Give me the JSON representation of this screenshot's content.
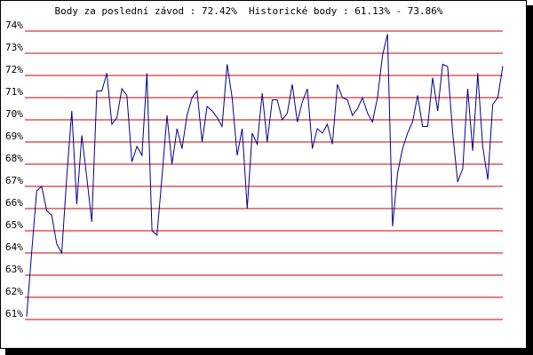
{
  "chart_data": {
    "type": "line",
    "title": "Body za poslední závod : 72.42%  Historické body : 61.13% - 73.86%",
    "categories": [
      null,
      null,
      null,
      null,
      null,
      null,
      null,
      null,
      null,
      null,
      null,
      null,
      null,
      null,
      null,
      null,
      null,
      null,
      null,
      null,
      null,
      null,
      null,
      null,
      null,
      null,
      null,
      null,
      null,
      null,
      null,
      null,
      null,
      null,
      null,
      null,
      null,
      null,
      null,
      null,
      null,
      null,
      null,
      null,
      null,
      null,
      null,
      null,
      null,
      null,
      null,
      null,
      null,
      null,
      null,
      null,
      null,
      null,
      null,
      null,
      null,
      null,
      null,
      null,
      null,
      null,
      null,
      null,
      null,
      null,
      null,
      null,
      null,
      null,
      null,
      null,
      null,
      null,
      null,
      null,
      null,
      null,
      null,
      null,
      null,
      null,
      null,
      null,
      null,
      null,
      null,
      null,
      null,
      null,
      null,
      null
    ],
    "values": [
      61.13,
      64,
      66.8,
      67,
      65.9,
      65.7,
      64.4,
      64,
      67.4,
      70.4,
      66.2,
      69.3,
      67.4,
      65.4,
      71.3,
      71.3,
      72.1,
      69.8,
      70.1,
      71.4,
      71.1,
      68.1,
      68.8,
      68.4,
      72.1,
      65,
      64.8,
      67.4,
      70.2,
      68,
      69.6,
      68.7,
      70.2,
      71,
      71.3,
      69,
      70.6,
      70.4,
      70.1,
      69.7,
      72.5,
      71,
      68.4,
      69.6,
      66,
      69.4,
      68.9,
      71.2,
      69,
      70.9,
      70.9,
      70,
      70.3,
      71.6,
      69.9,
      70.8,
      71.4,
      68.7,
      69.6,
      69.4,
      69.8,
      68.9,
      71.6,
      71,
      70.9,
      70.2,
      70.5,
      71,
      70.3,
      69.9,
      71,
      72.9,
      73.86,
      65.2,
      67.6,
      68.7,
      69.4,
      69.9,
      71.1,
      69.7,
      69.7,
      71.9,
      70.4,
      72.5,
      72.4,
      69.4,
      67.2,
      67.8,
      71.4,
      68.6,
      72.1,
      68.8,
      67.3,
      70.7,
      71,
      72.42
    ],
    "color": "#00008b",
    "grid_color": "#cc0000",
    "ylim": [
      61,
      74
    ],
    "yticks": [
      {
        "value": 61,
        "label": "61%"
      },
      {
        "value": 62,
        "label": "62%"
      },
      {
        "value": 63,
        "label": "63%"
      },
      {
        "value": 64,
        "label": "64%"
      },
      {
        "value": 65,
        "label": "65%"
      },
      {
        "value": 66,
        "label": "66%"
      },
      {
        "value": 67,
        "label": "67%"
      },
      {
        "value": 68,
        "label": "68%"
      },
      {
        "value": 69,
        "label": "69%"
      },
      {
        "value": 70,
        "label": "70%"
      },
      {
        "value": 71,
        "label": "71%"
      },
      {
        "value": 72,
        "label": "72%"
      },
      {
        "value": 73,
        "label": "73%"
      },
      {
        "value": 74,
        "label": "74%"
      }
    ],
    "grid": true
  }
}
